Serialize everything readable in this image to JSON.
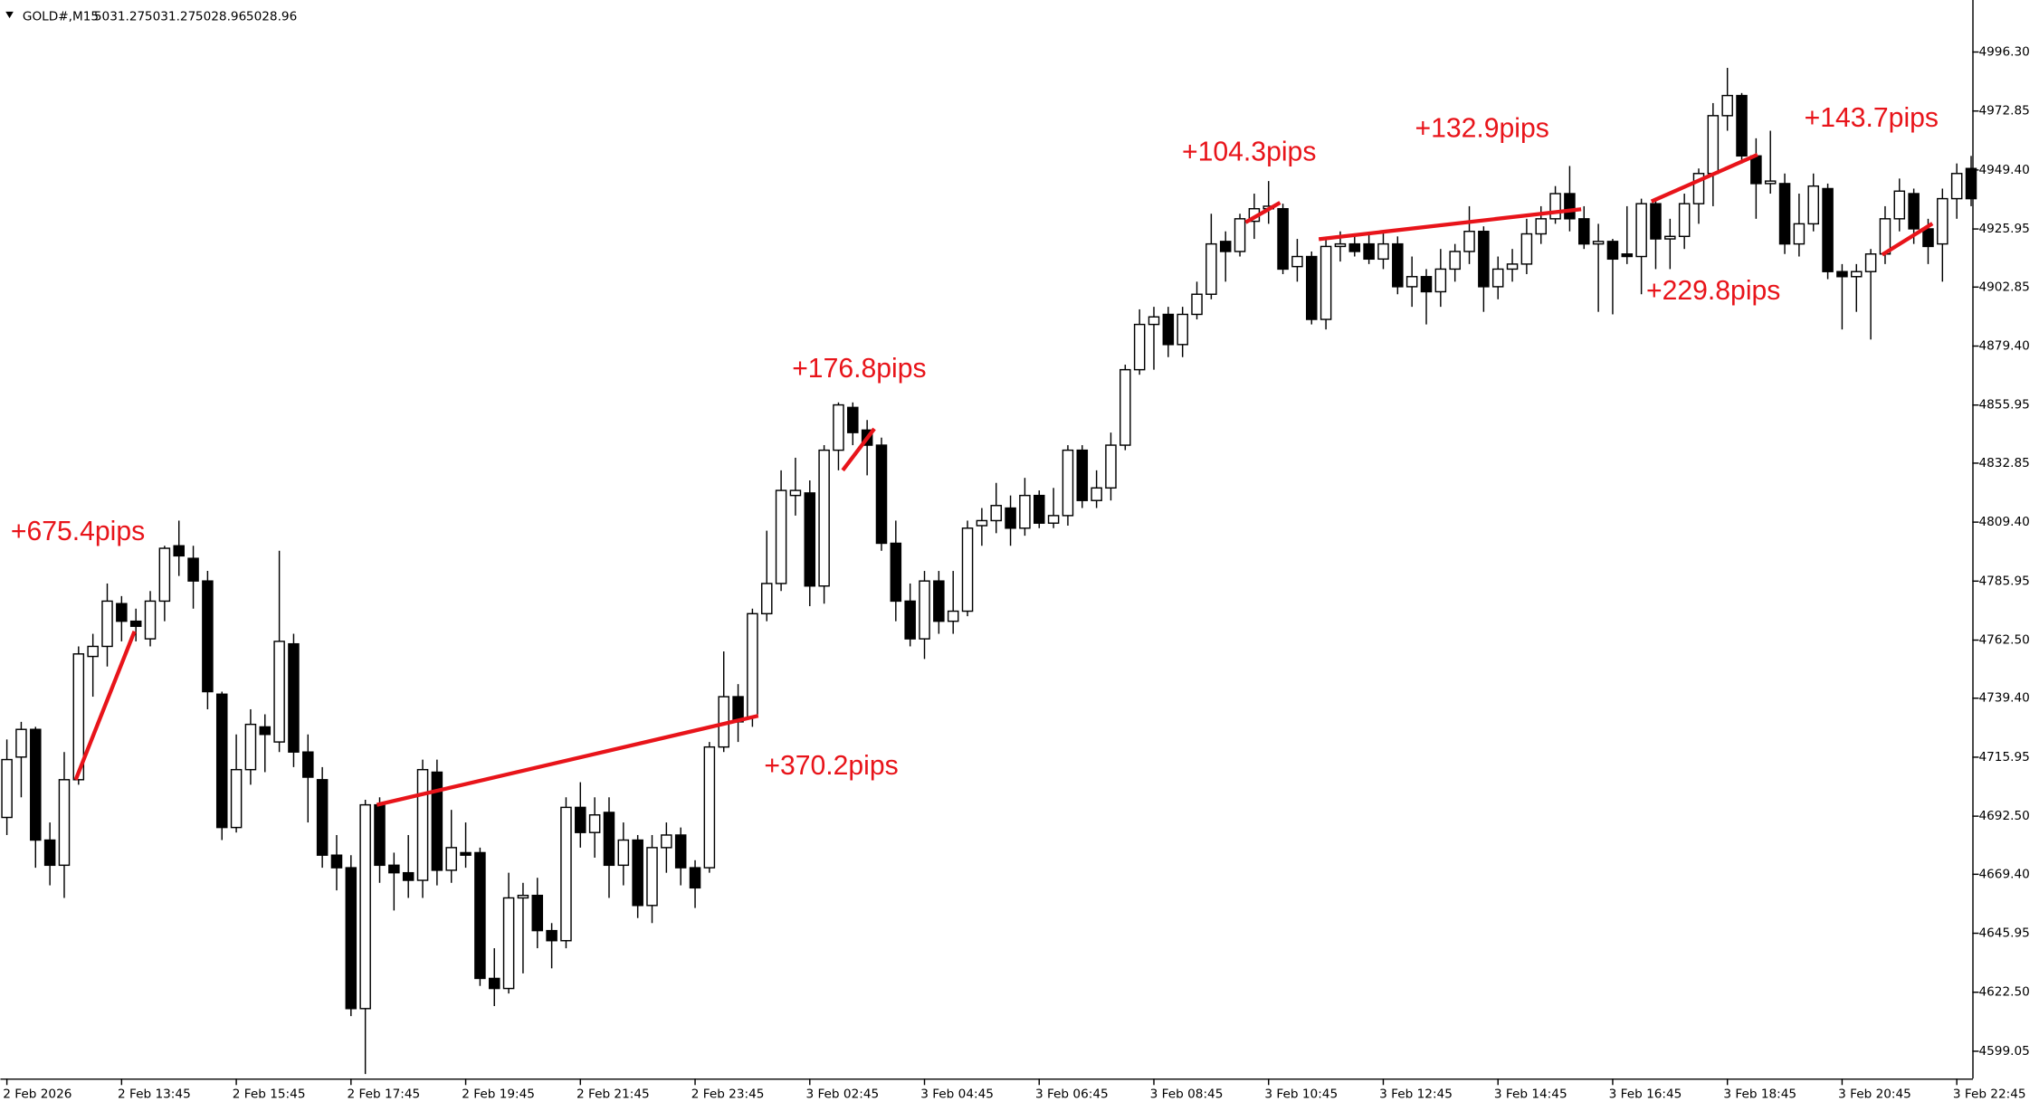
{
  "chart_data": {
    "type": "candlestick",
    "symbol": "GOLD#,M15",
    "header_prices": [
      5031.27,
      5031.27,
      5028.96,
      5028.96
    ],
    "up_color": "#ffffff",
    "down_color": "#000000",
    "outline_color": "#000000",
    "annotation_color": "#e8141a",
    "xlim": [
      -0.45,
      137.08
    ],
    "ylim": [
      4588.2,
      5014.4
    ],
    "yticks": [
      {
        "value": 4996.3,
        "label": "4996.30"
      },
      4972.85,
      {
        "value": 4949.4,
        "label": "4949.40"
      },
      4925.95,
      4902.85,
      {
        "value": 4879.4,
        "label": "4879.40"
      },
      4855.95,
      4832.85,
      {
        "value": 4809.4,
        "label": "4809.40"
      },
      4785.95,
      {
        "value": 4762.5,
        "label": "4762.50"
      },
      {
        "value": 4739.4,
        "label": "4739.40"
      },
      4715.95,
      {
        "value": 4692.5,
        "label": "4692.50"
      },
      {
        "value": 4669.4,
        "label": "4669.40"
      },
      4645.95,
      {
        "value": 4622.5,
        "label": "4622.50"
      },
      4599.05
    ],
    "xticks": [
      {
        "value": 0,
        "label": "2 Feb 2026"
      },
      {
        "value": 8,
        "label": "2 Feb 13:45"
      },
      {
        "value": 16,
        "label": "2 Feb 15:45"
      },
      {
        "value": 24,
        "label": "2 Feb 17:45"
      },
      {
        "value": 32,
        "label": "2 Feb 19:45"
      },
      {
        "value": 40,
        "label": "2 Feb 21:45"
      },
      {
        "value": 48,
        "label": "2 Feb 23:45"
      },
      {
        "value": 56,
        "label": "3 Feb 02:45"
      },
      {
        "value": 64,
        "label": "3 Feb 04:45"
      },
      {
        "value": 72,
        "label": "3 Feb 06:45"
      },
      {
        "value": 80,
        "label": "3 Feb 08:45"
      },
      {
        "value": 88,
        "label": "3 Feb 10:45"
      },
      {
        "value": 96,
        "label": "3 Feb 12:45"
      },
      {
        "value": 104,
        "label": "3 Feb 14:45"
      },
      {
        "value": 112,
        "label": "3 Feb 16:45"
      },
      {
        "value": 120,
        "label": "3 Feb 18:45"
      },
      {
        "value": 128,
        "label": "3 Feb 20:45"
      },
      {
        "value": 136,
        "label": "3 Feb 22:45"
      }
    ],
    "open": [
      4692,
      4716,
      4727,
      4683,
      4673,
      4707,
      4756,
      4760,
      4777,
      4770,
      4763,
      4778,
      4800,
      4795,
      4786,
      4741,
      4688,
      4711,
      4728,
      4722,
      4761,
      4718,
      4707,
      4677,
      4672,
      4616,
      4697,
      4673,
      4670,
      4667,
      4710,
      4671,
      4678,
      4678,
      4628,
      4624,
      4660,
      4661,
      4647,
      4643,
      4696,
      4686,
      4694,
      4673,
      4683,
      4657,
      4680,
      4685,
      4672,
      4672,
      4720,
      4740,
      4732,
      4773,
      4785,
      4820,
      4821,
      4784,
      4838,
      4855,
      4846,
      4840,
      4801,
      4778,
      4763,
      4786,
      4770,
      4774,
      4808,
      4810,
      4815,
      4807,
      4820,
      4809,
      4812,
      4838,
      4818,
      4823,
      4840,
      4870,
      4888,
      4892,
      4880,
      4892,
      4900,
      4921,
      4917,
      4929,
      4934,
      4934,
      4911,
      4915,
      4890,
      4919,
      4920,
      4920,
      4914,
      4920,
      4903,
      4907,
      4901,
      4910,
      4917,
      4925,
      4903,
      4910,
      4912,
      4924,
      4930,
      4940,
      4930,
      4920,
      4921,
      4916,
      4915,
      4936,
      4922,
      4923,
      4936,
      4948,
      4971,
      4979,
      4955,
      4944,
      4944,
      4920,
      4928,
      4942,
      4909,
      4907,
      4909,
      4916,
      4930,
      4940,
      4926,
      4920,
      4938,
      4950
    ],
    "high": [
      4723,
      4730,
      4728,
      4690,
      4718,
      4760,
      4765,
      4785,
      4780,
      4775,
      4782,
      4800,
      4810,
      4800,
      4790,
      4742,
      4725,
      4735,
      4733,
      4798,
      4765,
      4725,
      4712,
      4685,
      4677,
      4699,
      4700,
      4678,
      4685,
      4715,
      4715,
      4695,
      4690,
      4680,
      4640,
      4670,
      4666,
      4668,
      4650,
      4700,
      4706,
      4700,
      4700,
      4690,
      4685,
      4685,
      4690,
      4688,
      4675,
      4722,
      4758,
      4745,
      4775,
      4806,
      4830,
      4835,
      4826,
      4840,
      4857,
      4857,
      4850,
      4843,
      4810,
      4785,
      4790,
      4790,
      4790,
      4810,
      4815,
      4825,
      4820,
      4827,
      4822,
      4823,
      4840,
      4840,
      4830,
      4845,
      4872,
      4894,
      4895,
      4895,
      4895,
      4905,
      4932,
      4925,
      4932,
      4940,
      4945,
      4936,
      4922,
      4917,
      4922,
      4925,
      4923,
      4924,
      4925,
      4923,
      4915,
      4910,
      4918,
      4920,
      4935,
      4927,
      4915,
      4918,
      4930,
      4935,
      4943,
      4951,
      4935,
      4928,
      4922,
      4935,
      4938,
      4938,
      4930,
      4940,
      4950,
      4976,
      4990,
      4980,
      4962,
      4965,
      4948,
      4940,
      4948,
      4944,
      4912,
      4912,
      4918,
      4935,
      4946,
      4942,
      4930,
      4942,
      4952,
      4955
    ],
    "low": [
      4685,
      4700,
      4672,
      4665,
      4660,
      4705,
      4740,
      4752,
      4762,
      4762,
      4760,
      4770,
      4788,
      4775,
      4735,
      4683,
      4686,
      4705,
      4710,
      4718,
      4712,
      4690,
      4672,
      4663,
      4613,
      4590,
      4666,
      4655,
      4660,
      4660,
      4665,
      4666,
      4672,
      4625,
      4617,
      4622,
      4630,
      4640,
      4632,
      4640,
      4680,
      4676,
      4660,
      4665,
      4652,
      4650,
      4670,
      4665,
      4656,
      4670,
      4718,
      4722,
      4728,
      4770,
      4782,
      4812,
      4776,
      4777,
      4830,
      4840,
      4828,
      4798,
      4770,
      4760,
      4755,
      4765,
      4765,
      4772,
      4800,
      4805,
      4800,
      4804,
      4807,
      4807,
      4808,
      4815,
      4815,
      4818,
      4838,
      4868,
      4870,
      4875,
      4875,
      4890,
      4898,
      4905,
      4915,
      4922,
      4928,
      4908,
      4905,
      4888,
      4886,
      4913,
      4915,
      4912,
      4910,
      4900,
      4895,
      4888,
      4895,
      4905,
      4912,
      4893,
      4898,
      4905,
      4908,
      4920,
      4928,
      4925,
      4918,
      4893,
      4892,
      4912,
      4900,
      4910,
      4910,
      4918,
      4928,
      4935,
      4965,
      4952,
      4930,
      4940,
      4916,
      4915,
      4925,
      4906,
      4886,
      4893,
      4882,
      4912,
      4925,
      4920,
      4912,
      4905,
      4930,
      4935
    ],
    "close": [
      4715,
      4727,
      4683,
      4673,
      4707,
      4757,
      4760,
      4778,
      4770,
      4768,
      4778,
      4799,
      4796,
      4786,
      4742,
      4688,
      4711,
      4729,
      4725,
      4762,
      4718,
      4708,
      4677,
      4672,
      4616,
      4697,
      4673,
      4670,
      4667,
      4711,
      4671,
      4680,
      4677,
      4628,
      4624,
      4660,
      4661,
      4647,
      4643,
      4696,
      4686,
      4693,
      4673,
      4683,
      4657,
      4680,
      4685,
      4672,
      4664,
      4720,
      4740,
      4730,
      4773,
      4785,
      4822,
      4822,
      4784,
      4838,
      4856,
      4845,
      4840,
      4801,
      4778,
      4763,
      4786,
      4770,
      4774,
      4807,
      4810,
      4816,
      4807,
      4820,
      4809,
      4812,
      4838,
      4818,
      4823,
      4840,
      4870,
      4888,
      4891,
      4880,
      4892,
      4900,
      4920,
      4917,
      4930,
      4934,
      4935,
      4910,
      4915,
      4890,
      4919,
      4920,
      4917,
      4914,
      4920,
      4903,
      4907,
      4901,
      4910,
      4917,
      4925,
      4903,
      4910,
      4912,
      4924,
      4930,
      4940,
      4930,
      4920,
      4921,
      4914,
      4915,
      4936,
      4922,
      4923,
      4936,
      4948,
      4971,
      4979,
      4955,
      4944,
      4945,
      4920,
      4928,
      4943,
      4909,
      4907,
      4909,
      4916,
      4930,
      4941,
      4926,
      4919,
      4938,
      4948,
      4938
    ],
    "annotations": [
      {
        "text": "+675.4pips",
        "x": [
          4.8,
          8.9
        ],
        "y": [
          4707,
          4766
        ]
      },
      {
        "text": "+370.2pips",
        "x": [
          25.8,
          52.4
        ],
        "y": [
          4697,
          4732.4
        ]
      },
      {
        "text": "+176.8pips",
        "x": [
          58.3,
          60.5
        ],
        "y": [
          4830,
          4846.5
        ]
      },
      {
        "text": "+104.3pips",
        "x": [
          86.4,
          88.8
        ],
        "y": [
          4928.6,
          4936.4
        ]
      },
      {
        "text": "+132.9pips",
        "x": [
          91.5,
          109.8
        ],
        "y": [
          4921.9,
          4933.8
        ]
      },
      {
        "text": "+229.8pips",
        "x": [
          114.7,
          122.1
        ],
        "y": [
          4936.9,
          4955.5
        ]
      },
      {
        "text": "+143.7pips",
        "x": [
          130.8,
          134.3
        ],
        "y": [
          4915.7,
          4928.1
        ]
      }
    ]
  }
}
